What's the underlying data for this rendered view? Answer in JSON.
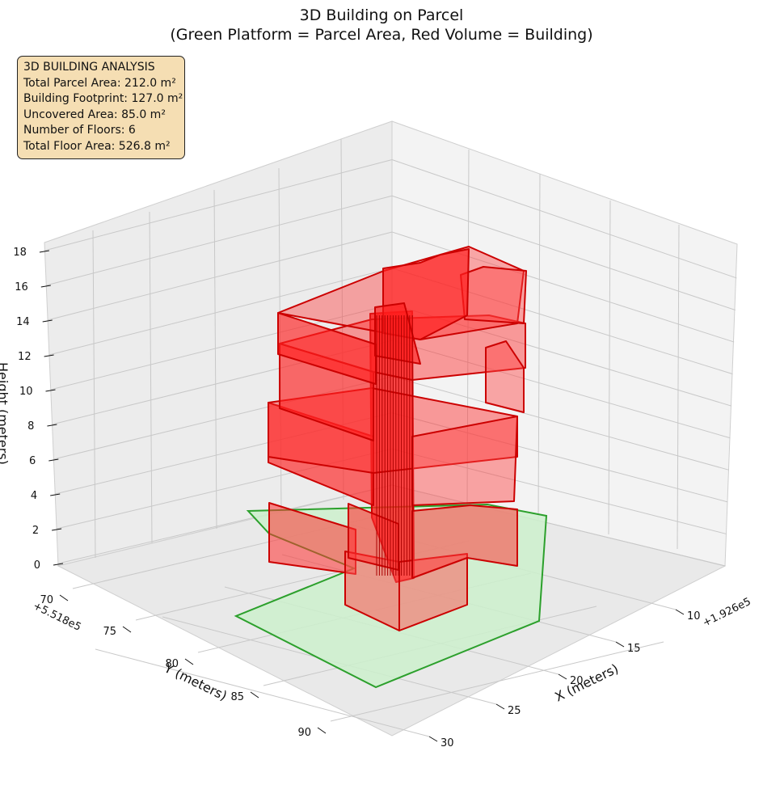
{
  "chart_data": {
    "type": "3d-polygon",
    "title": "3D Building on Parcel",
    "subtitle": "(Green Platform = Parcel Area, Red Volume = Building)",
    "xlabel": "X (meters)",
    "ylabel": "Y (meters)",
    "zlabel": "Height (meters)",
    "x_offset_label": "+1.926e5",
    "y_offset_label": "+5.518e5",
    "x_ticks": [
      "10",
      "15",
      "20",
      "25",
      "30"
    ],
    "y_ticks": [
      "70",
      "75",
      "80",
      "85",
      "90"
    ],
    "z_ticks": [
      "0",
      "2",
      "4",
      "6",
      "8",
      "10",
      "12",
      "14",
      "16",
      "18"
    ],
    "xlim": [
      6,
      32
    ],
    "ylim": [
      68,
      92
    ],
    "zlim": [
      0,
      18
    ],
    "grid": true,
    "series": [
      {
        "name": "Parcel Area",
        "color": "#2ca02c",
        "fill": "#ccf0cc"
      },
      {
        "name": "Building",
        "color": "#e00000",
        "fill": "#ff2020"
      }
    ],
    "info": {
      "heading": "3D BUILDING ANALYSIS",
      "lines": [
        "Total Parcel Area: 212.0 m²",
        "Building Footprint: 127.0 m²",
        "Uncovered Area: 85.0 m²",
        "Number of Floors: 6",
        "Total Floor Area: 526.8 m²"
      ]
    }
  }
}
